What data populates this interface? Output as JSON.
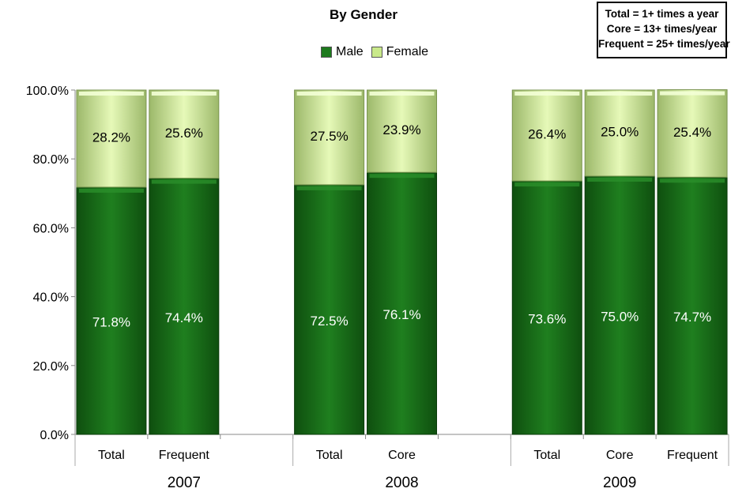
{
  "chart_data": {
    "type": "bar",
    "stacked": true,
    "title": "",
    "subtitle": "By Gender",
    "ylim": [
      0,
      100
    ],
    "yticks": [
      "0.0%",
      "20.0%",
      "40.0%",
      "60.0%",
      "80.0%",
      "100.0%"
    ],
    "groups": [
      {
        "year": "2007",
        "categories": [
          "Total",
          "Frequent"
        ]
      },
      {
        "year": "2008",
        "categories": [
          "Total",
          "Core"
        ]
      },
      {
        "year": "2009",
        "categories": [
          "Total",
          "Core",
          "Frequent"
        ]
      }
    ],
    "series": [
      {
        "name": "Male",
        "color": "#1d7a1d",
        "values": [
          71.8,
          74.4,
          72.5,
          76.1,
          73.6,
          75.0,
          74.7
        ],
        "labels": [
          "71.8%",
          "74.4%",
          "72.5%",
          "76.1%",
          "73.6%",
          "75.0%",
          "74.7%"
        ]
      },
      {
        "name": "Female",
        "color": "#d8f2a8",
        "values": [
          28.2,
          25.6,
          27.5,
          23.9,
          26.4,
          25.0,
          25.4
        ],
        "labels": [
          "28.2%",
          "25.6%",
          "27.5%",
          "23.9%",
          "26.4%",
          "25.0%",
          "25.4%"
        ]
      }
    ],
    "legend_position": "top-center",
    "grid": false
  },
  "definitions": {
    "total": "Total = 1+ times a year",
    "core": "Core = 13+ times/year",
    "frequent": "Frequent = 25+ times/year"
  }
}
